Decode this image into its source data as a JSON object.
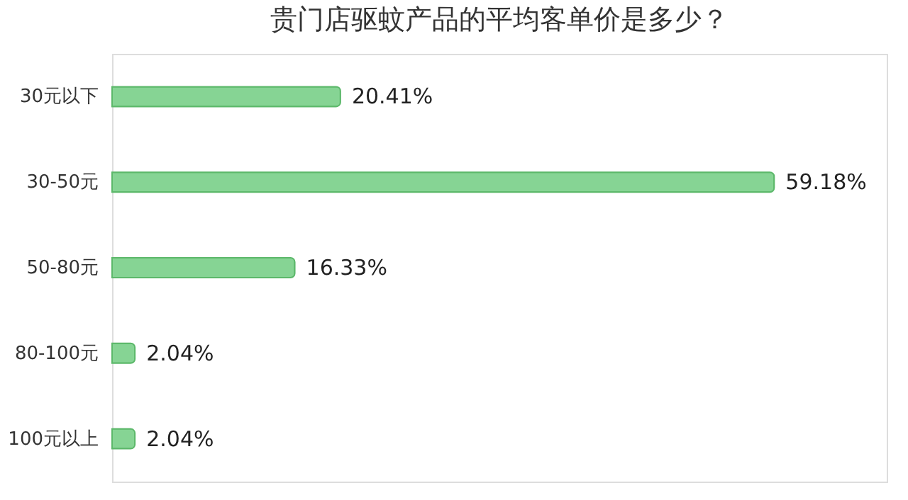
{
  "chart_data": {
    "type": "bar",
    "orientation": "horizontal",
    "title": "贵门店驱蚊产品的平均客单价是多少？",
    "categories": [
      "30元以下",
      "30-50元",
      "50-80元",
      "80-100元",
      "100元以上"
    ],
    "values": [
      20.41,
      59.18,
      16.33,
      2.04,
      2.04
    ],
    "value_labels": [
      "20.41%",
      "59.18%",
      "16.33%",
      "2.04%",
      "2.04%"
    ],
    "color": "#86d494"
  }
}
